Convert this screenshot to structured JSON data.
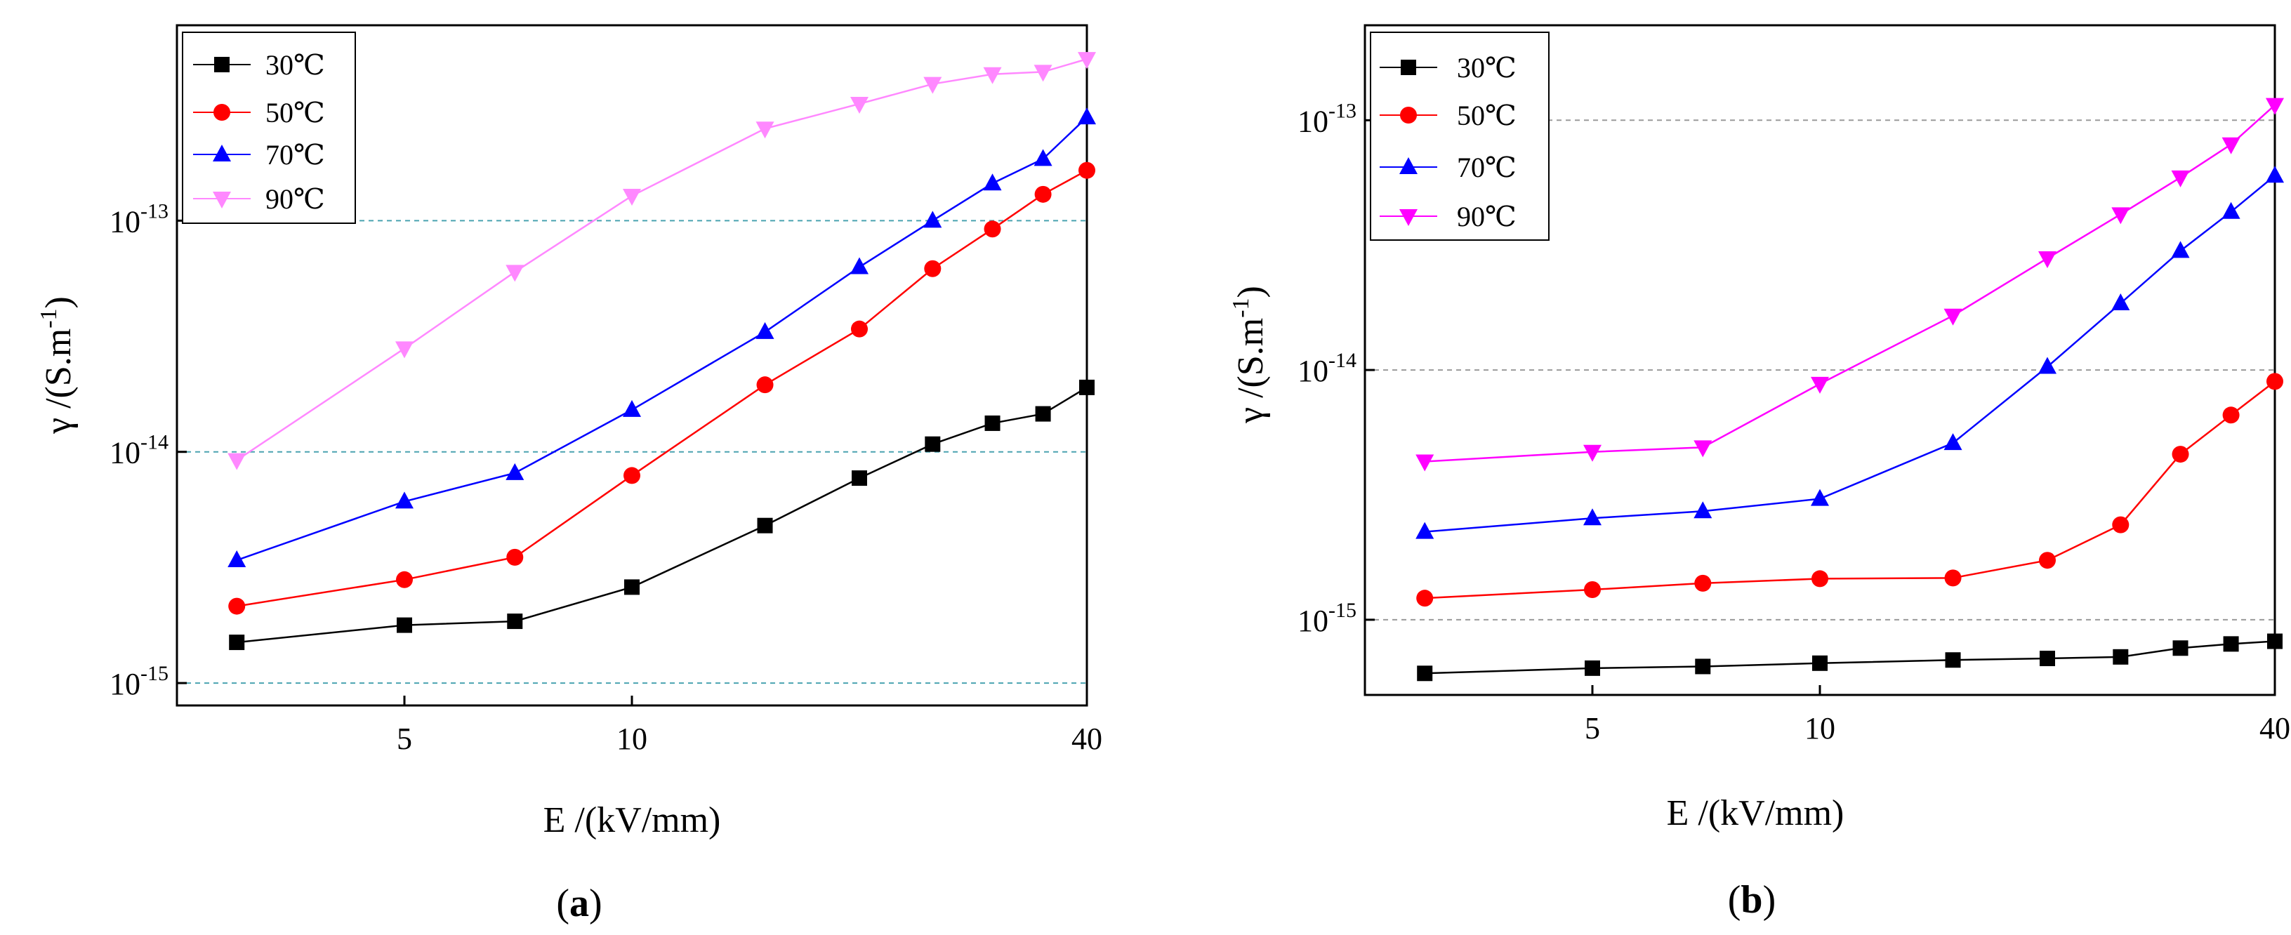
{
  "chart_data": [
    {
      "type": "line",
      "panel_label": "a",
      "xlabel": "E /(kV/mm)",
      "ylabel_main": "γ /(S.m",
      "ylabel_sup": "-1",
      "ylabel_close": ")",
      "x_scale": "log",
      "y_scale": "log",
      "xlim": [
        2.5,
        40
      ],
      "ylim": [
        8e-16,
        7e-13
      ],
      "x_ticks": [
        5,
        10,
        40
      ],
      "x_tick_labels": [
        "5",
        "10",
        "40"
      ],
      "y_ticks": [
        1e-15,
        1e-14,
        1e-13
      ],
      "y_tick_bases": [
        "10",
        "10",
        "10"
      ],
      "y_tick_exps": [
        "-15",
        "-14",
        "-13"
      ],
      "gridlines_y": [
        1e-15,
        1e-14,
        1e-13
      ],
      "grid_color": "#4aa3b0",
      "legend_position": "top-left",
      "x": [
        3,
        5,
        7,
        10,
        15,
        20,
        25,
        30,
        35,
        40
      ],
      "series": [
        {
          "name": "30℃",
          "color": "#000000",
          "marker": "square",
          "values": [
            1.5e-15,
            1.78e-15,
            1.85e-15,
            2.6e-15,
            4.8e-15,
            7.7e-15,
            1.08e-14,
            1.33e-14,
            1.46e-14,
            1.9e-14
          ]
        },
        {
          "name": "50℃",
          "color": "#ff0000",
          "marker": "circle",
          "values": [
            2.15e-15,
            2.8e-15,
            3.5e-15,
            7.9e-15,
            1.95e-14,
            3.4e-14,
            6.2e-14,
            9.2e-14,
            1.3e-13,
            1.65e-13
          ]
        },
        {
          "name": "70℃",
          "color": "#0000ff",
          "marker": "triangle-up",
          "values": [
            3.4e-15,
            6.1e-15,
            8.1e-15,
            1.52e-14,
            3.3e-14,
            6.3e-14,
            1e-13,
            1.45e-13,
            1.85e-13,
            2.8e-13
          ]
        },
        {
          "name": "90℃",
          "color": "#ff88ff",
          "marker": "triangle-down",
          "values": [
            9.2e-15,
            2.8e-14,
            6e-14,
            1.28e-13,
            2.5e-13,
            3.2e-13,
            3.9e-13,
            4.3e-13,
            4.4e-13,
            5e-13
          ]
        }
      ]
    },
    {
      "type": "line",
      "panel_label": "b",
      "xlabel": "E /(kV/mm)",
      "ylabel_main": "γ /(S.m",
      "ylabel_sup": "-1",
      "ylabel_close": ")",
      "x_scale": "log",
      "y_scale": "log",
      "xlim": [
        2.5,
        40
      ],
      "ylim": [
        5e-16,
        2.4e-13
      ],
      "x_ticks": [
        5,
        10,
        40
      ],
      "x_tick_labels": [
        "5",
        "10",
        "40"
      ],
      "y_ticks": [
        1e-15,
        1e-14,
        1e-13
      ],
      "y_tick_bases": [
        "10",
        "10",
        "10"
      ],
      "y_tick_exps": [
        "-15",
        "-14",
        "-13"
      ],
      "gridlines_y": [
        1e-15,
        1e-14,
        1e-13
      ],
      "grid_color": "#9a9a9a",
      "legend_position": "top-left",
      "x": [
        3,
        5,
        7,
        10,
        15,
        20,
        25,
        30,
        35,
        40
      ],
      "series": [
        {
          "name": "30℃",
          "color": "#000000",
          "marker": "square",
          "values": [
            6.1e-16,
            6.4e-16,
            6.5e-16,
            6.7e-16,
            6.9e-16,
            7e-16,
            7.1e-16,
            7.7e-16,
            8e-16,
            8.2e-16
          ]
        },
        {
          "name": "50℃",
          "color": "#ff0000",
          "marker": "circle",
          "values": [
            1.22e-15,
            1.32e-15,
            1.4e-15,
            1.46e-15,
            1.47e-15,
            1.73e-15,
            2.4e-15,
            4.6e-15,
            6.6e-15,
            9e-15
          ]
        },
        {
          "name": "70℃",
          "color": "#0000ff",
          "marker": "triangle-up",
          "values": [
            2.25e-15,
            2.55e-15,
            2.72e-15,
            3.05e-15,
            5.1e-15,
            1.03e-14,
            1.85e-14,
            3e-14,
            4.3e-14,
            6e-14
          ]
        },
        {
          "name": "90℃",
          "color": "#ff00ff",
          "marker": "triangle-down",
          "values": [
            4.3e-15,
            4.7e-15,
            4.9e-15,
            8.8e-15,
            1.65e-14,
            2.8e-14,
            4.2e-14,
            5.9e-14,
            8e-14,
            1.15e-13
          ]
        }
      ]
    }
  ]
}
